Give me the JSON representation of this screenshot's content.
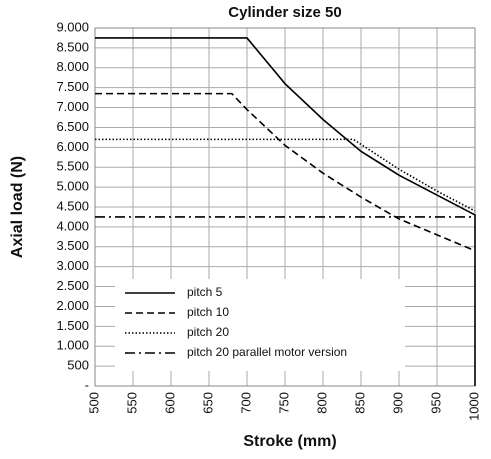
{
  "chart_data": {
    "type": "line",
    "title": "Cylinder size 50",
    "x_label": "Stroke (mm)",
    "y_label": "Axial load (N)",
    "xlim": [
      500,
      1000
    ],
    "xticks": [
      500,
      550,
      600,
      650,
      700,
      750,
      800,
      850,
      900,
      950,
      1000
    ],
    "ylim": [
      0,
      9000
    ],
    "yticks": [
      {
        "value": 0,
        "label": "-"
      },
      {
        "value": 500,
        "label": "500"
      },
      {
        "value": 1000,
        "label": "1.000"
      },
      {
        "value": 1500,
        "label": "1.500"
      },
      {
        "value": 2000,
        "label": "2.000"
      },
      {
        "value": 2500,
        "label": "2.500"
      },
      {
        "value": 3000,
        "label": "3.000"
      },
      {
        "value": 3500,
        "label": "3.500"
      },
      {
        "value": 4000,
        "label": "4.000"
      },
      {
        "value": 4500,
        "label": "4.500"
      },
      {
        "value": 5000,
        "label": "5.000"
      },
      {
        "value": 5500,
        "label": "5.500"
      },
      {
        "value": 6000,
        "label": "6.000"
      },
      {
        "value": 6500,
        "label": "6.500"
      },
      {
        "value": 7000,
        "label": "7.000"
      },
      {
        "value": 7500,
        "label": "7.500"
      },
      {
        "value": 8000,
        "label": "8.000"
      },
      {
        "value": 8500,
        "label": "8.500"
      },
      {
        "value": 9000,
        "label": "9.000"
      }
    ],
    "grid": true,
    "legend": "lower left",
    "series": [
      {
        "name": "pitch 5",
        "color": "#000000",
        "dash": "solid",
        "x": [
          500,
          700,
          750,
          800,
          850,
          900,
          950,
          1000,
          1000
        ],
        "values": [
          8750,
          8750,
          7600,
          6700,
          5900,
          5300,
          4800,
          4300,
          0
        ]
      },
      {
        "name": "pitch 10",
        "color": "#000000",
        "dash": "dashed",
        "x": [
          500,
          680,
          700,
          750,
          800,
          850,
          900,
          950,
          1000
        ],
        "values": [
          7350,
          7350,
          6950,
          6050,
          5350,
          4750,
          4200,
          3800,
          3400
        ]
      },
      {
        "name": "pitch 20",
        "color": "#000000",
        "dash": "dotted",
        "x": [
          500,
          840,
          900,
          950,
          1000
        ],
        "values": [
          6200,
          6200,
          5450,
          4900,
          4400
        ]
      },
      {
        "name": "pitch 20 parallel motor version",
        "color": "#000000",
        "dash": "dashdot",
        "x": [
          500,
          1000
        ],
        "values": [
          4250,
          4250
        ]
      }
    ]
  }
}
